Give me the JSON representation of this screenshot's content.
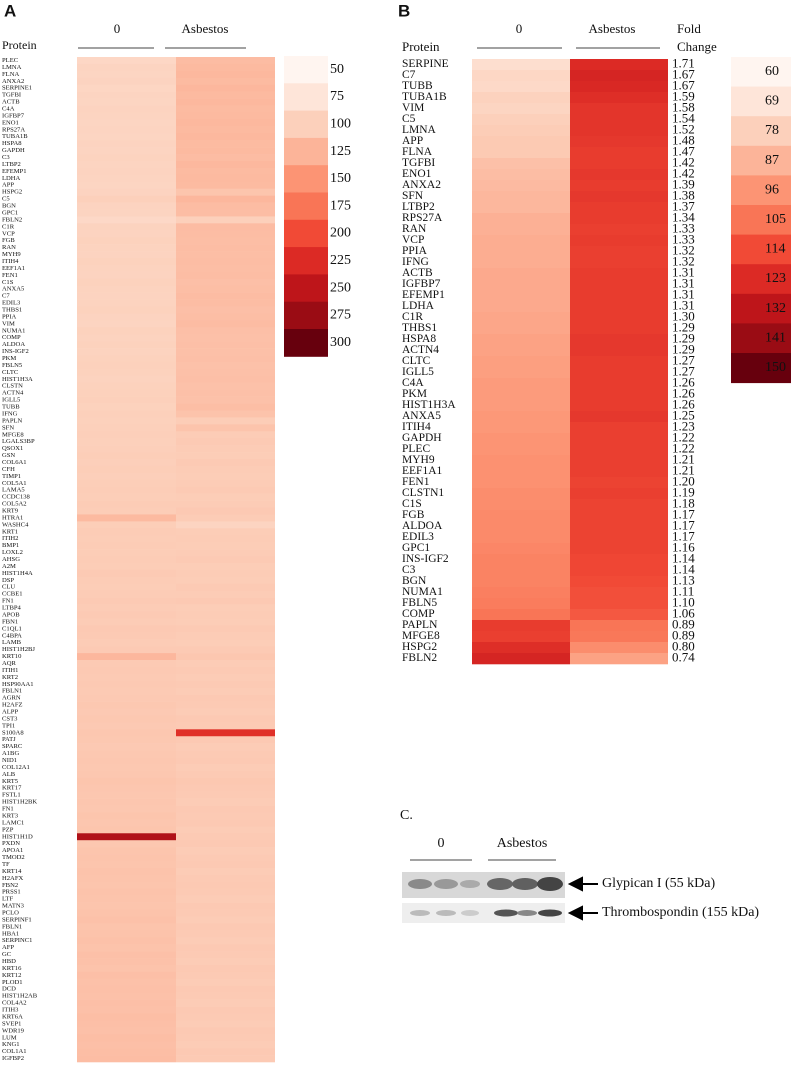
{
  "chart_data": [
    {
      "type": "heatmap",
      "label": "A",
      "row_header": "Protein",
      "categories": [
        "PLEC",
        "LMNA",
        "FLNA",
        "ANXA2",
        "SERPINE1",
        "TGFBI",
        "ACTB",
        "C4A",
        "IGFBP7",
        "ENO1",
        "RPS27A",
        "TUBA1B",
        "HSPA8",
        "GAPDH",
        "C3",
        "LTBP2",
        "EFEMP1",
        "LDHA",
        "APP",
        "HSPG2",
        "C5",
        "BGN",
        "GPC1",
        "FBLN2",
        "C1R",
        "VCP",
        "FGB",
        "RAN",
        "MYH9",
        "ITIH4",
        "EEF1A1",
        "FEN1",
        "C1S",
        "ANXA5",
        "C7",
        "EDIL3",
        "THBS1",
        "PPIA",
        "VIM",
        "NUMA1",
        "COMP",
        "ALDOA",
        "INS-IGF2",
        "PKM",
        "FBLN5",
        "CLTC",
        "HIST1H3A",
        "CLSTN",
        "ACTN4",
        "IGLL5",
        "TUBB",
        "IFNG",
        "PAPLN",
        "SFN",
        "MFGE8",
        "LGALS3BP",
        "QSOX1",
        "GSN",
        "COL6A1",
        "CFH",
        "TIMP1",
        "COL5A1",
        "LAMA5",
        "CCDC138",
        "COL5A2",
        "KRT9",
        "HTRA1",
        "WASHC4",
        "KRT1",
        "ITIH2",
        "BMP1",
        "LOXL2",
        "AHSG",
        "A2M",
        "HIST1H4A",
        "DSP",
        "CLU",
        "CCBE1",
        "FN1",
        "LTBP4",
        "APOB",
        "FBN1",
        "C1QL1",
        "C4BPA",
        "LAMB",
        "HIST1H2BJ",
        "KRT10",
        "AQR",
        "ITIH1",
        "KRT2",
        "HSP90AA1",
        "FBLN1",
        "AGRN",
        "H2AFZ",
        "ALPP",
        "CST3",
        "TPI1",
        "S100A8",
        "PATJ",
        "SPARC",
        "A1BG",
        "NID1",
        "COL12A1",
        "ALB",
        "KRT5",
        "KRT17",
        "FSTL1",
        "HIST1H2BK",
        "FN1",
        "KRT3",
        "LAMC1",
        "PZP",
        "HIST1H1D",
        "PXDN",
        "APOA1",
        "TMOD2",
        "TF",
        "KRT14",
        "H2AFX",
        "FBN2",
        "PRSS1",
        "LTF",
        "MATN3",
        "PCLO",
        "SERPINF1",
        "FBLN1",
        "HBA1",
        "SERPINC1",
        "AFP",
        "GC",
        "HBD",
        "KRT16",
        "KRT12",
        "PLOD1",
        "DCD",
        "HIST1H2AB",
        "COL4A2",
        "ITIH3",
        "KRT6A",
        "SVEP1",
        "WDR19",
        "LUM",
        "KNG1",
        "COL1A1",
        "IGFBP2"
      ],
      "series": [
        {
          "name": "0",
          "values": [
            92,
            95,
            94,
            96,
            93,
            95,
            94,
            96,
            95,
            94,
            95,
            94,
            96,
            95,
            97,
            95,
            96,
            95,
            94,
            96,
            100,
            96,
            95,
            90,
            97,
            96,
            98,
            97,
            96,
            98,
            97,
            96,
            98,
            97,
            96,
            97,
            98,
            96,
            95,
            98,
            97,
            98,
            97,
            98,
            99,
            98,
            97,
            98,
            99,
            100,
            98,
            100,
            99,
            100,
            101,
            100,
            101,
            102,
            101,
            102,
            101,
            102,
            103,
            102,
            104,
            103,
            120,
            102,
            104,
            103,
            104,
            103,
            104,
            103,
            105,
            104,
            103,
            104,
            105,
            104,
            105,
            104,
            106,
            105,
            104,
            105,
            122,
            105,
            106,
            105,
            106,
            105,
            106,
            107,
            106,
            107,
            106,
            108,
            107,
            106,
            107,
            108,
            107,
            108,
            110,
            109,
            108,
            109,
            108,
            110,
            109,
            110,
            260,
            108,
            110,
            111,
            110,
            112,
            111,
            110,
            112,
            111,
            110,
            112,
            113,
            111,
            112,
            113,
            112,
            114,
            113,
            112,
            115,
            113,
            114,
            113,
            115,
            114,
            116,
            115,
            114,
            116,
            115,
            116,
            117
          ]
        },
        {
          "name": "Asbestos",
          "values": [
            118,
            120,
            121,
            119,
            122,
            120,
            121,
            119,
            120,
            121,
            120,
            121,
            119,
            120,
            118,
            121,
            119,
            120,
            119,
            110,
            122,
            118,
            117,
            100,
            118,
            117,
            116,
            117,
            116,
            117,
            116,
            117,
            115,
            116,
            118,
            117,
            115,
            116,
            118,
            115,
            114,
            115,
            114,
            115,
            113,
            114,
            115,
            113,
            114,
            113,
            116,
            112,
            103,
            111,
            104,
            105,
            104,
            103,
            105,
            104,
            103,
            104,
            105,
            103,
            104,
            106,
            104,
            95,
            103,
            104,
            103,
            104,
            105,
            103,
            104,
            103,
            105,
            104,
            106,
            103,
            104,
            103,
            105,
            104,
            103,
            105,
            108,
            104,
            105,
            104,
            105,
            104,
            106,
            105,
            104,
            106,
            105,
            220,
            106,
            104,
            105,
            106,
            104,
            105,
            107,
            106,
            105,
            104,
            106,
            105,
            106,
            104,
            105,
            106,
            104,
            105,
            106,
            104,
            105,
            106,
            105,
            104,
            106,
            105,
            104,
            106,
            105,
            104,
            106,
            105,
            104,
            106,
            105,
            104,
            106,
            105,
            104,
            106,
            105,
            104,
            106,
            105,
            104,
            106,
            105
          ]
        }
      ],
      "colors": [
        "#fff5f0",
        "#fee5d9",
        "#fcd0bb",
        "#fcb499",
        "#fc9474",
        "#f97556",
        "#f14a36",
        "#dc2a25",
        "#be151a",
        "#9a0c14",
        "#67000d"
      ],
      "legend_ticks": [
        50,
        75,
        100,
        125,
        150,
        175,
        200,
        225,
        250,
        275,
        300
      ]
    },
    {
      "type": "heatmap",
      "label": "B",
      "row_header": "Protein",
      "fold_change_title": [
        "Fold",
        "Change"
      ],
      "categories": [
        "SERPINE",
        "C7",
        "TUBB",
        "TUBA1B",
        "VIM",
        "C5",
        "LMNA",
        "APP",
        "FLNA",
        "TGFBI",
        "ENO1",
        "ANXA2",
        "SFN",
        "LTBP2",
        "RPS27A",
        "RAN",
        "VCP",
        "PPIA",
        "IFNG",
        "ACTB",
        "IGFBP7",
        "EFEMP1",
        "LDHA",
        "C1R",
        "THBS1",
        "HSPA8",
        "ACTN4",
        "CLTC",
        "IGLL5",
        "C4A",
        "PKM",
        "HIST1H3A",
        "ANXA5",
        "ITIH4",
        "GAPDH",
        "PLEC",
        "MYH9",
        "EEF1A1",
        "FEN1",
        "CLSTN1",
        "C1S",
        "FGB",
        "ALDOA",
        "EDIL3",
        "GPC1",
        "INS-IGF2",
        "C3",
        "BGN",
        "NUMA1",
        "FBLN5",
        "COMP",
        "PAPLN",
        "MFGE8",
        "HSPG2",
        "FBLN2"
      ],
      "fold_change": [
        "1.71",
        "1.67",
        "1.67",
        "1.59",
        "1.58",
        "1.54",
        "1.52",
        "1.48",
        "1.47",
        "1.42",
        "1.42",
        "1.39",
        "1.38",
        "1.37",
        "1.34",
        "1.33",
        "1.33",
        "1.32",
        "1.32",
        "1.31",
        "1.31",
        "1.31",
        "1.31",
        "1.30",
        "1.29",
        "1.29",
        "1.29",
        "1.27",
        "1.27",
        "1.26",
        "1.26",
        "1.26",
        "1.25",
        "1.23",
        "1.22",
        "1.22",
        "1.21",
        "1.21",
        "1.20",
        "1.19",
        "1.18",
        "1.17",
        "1.17",
        "1.17",
        "1.16",
        "1.14",
        "1.14",
        "1.13",
        "1.11",
        "1.10",
        "1.06",
        "0.89",
        "0.89",
        "0.80",
        "0.74"
      ],
      "series": [
        {
          "name": "0",
          "values": [
            72,
            75,
            74,
            77,
            76,
            78,
            79,
            80,
            80,
            83,
            84,
            85,
            86,
            86,
            88,
            88,
            89,
            89,
            89,
            90,
            90,
            90,
            90,
            91,
            91,
            92,
            92,
            93,
            93,
            94,
            94,
            94,
            95,
            95,
            96,
            96,
            97,
            97,
            97,
            98,
            98,
            99,
            99,
            99,
            100,
            101,
            101,
            101,
            102,
            103,
            105,
            118,
            117,
            122,
            125
          ]
        },
        {
          "name": "Asbestos",
          "values": [
            123,
            125,
            124,
            122,
            120,
            120,
            120,
            119,
            118,
            118,
            119,
            118,
            119,
            118,
            118,
            117,
            118,
            117,
            117,
            118,
            118,
            118,
            118,
            118,
            118,
            119,
            119,
            118,
            118,
            118,
            118,
            118,
            119,
            117,
            117,
            117,
            117,
            117,
            116,
            117,
            116,
            116,
            116,
            116,
            116,
            115,
            115,
            114,
            113,
            113,
            111,
            105,
            104,
            98,
            92
          ]
        }
      ],
      "colors": [
        "#fff5f0",
        "#fee5d9",
        "#fcd0bb",
        "#fcb499",
        "#fc9474",
        "#f97556",
        "#f14a36",
        "#dc2a25",
        "#be151a",
        "#9a0c14",
        "#67000d"
      ],
      "legend_ticks": [
        60,
        69,
        78,
        87,
        96,
        105,
        114,
        123,
        132,
        141,
        150
      ]
    }
  ],
  "blot": {
    "label": "C.",
    "groups": [
      "0",
      "Asbestos"
    ],
    "bands": [
      "Glypican I (55 kDa)",
      "Thrombospondin (155 kDa)"
    ]
  }
}
